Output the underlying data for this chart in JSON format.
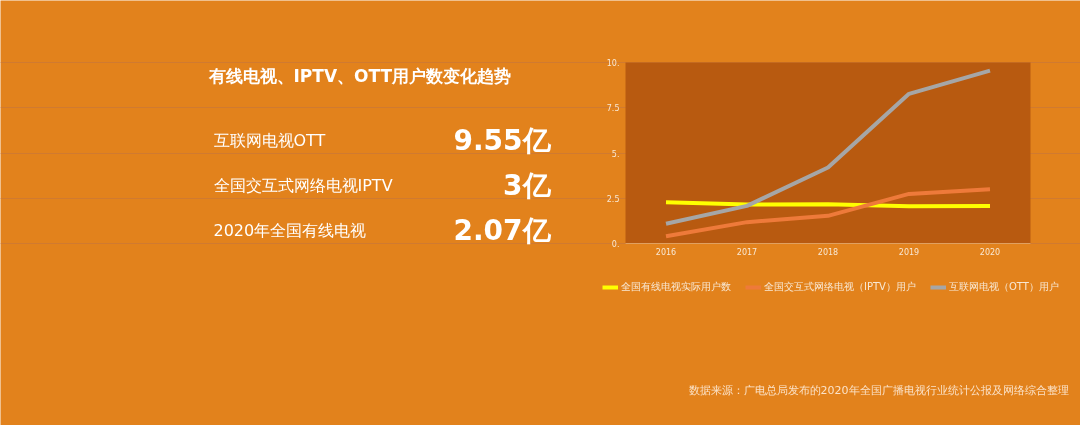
{
  "chart_data": {
    "type": "line",
    "title": "有线电视、IPTV、OTT用户数变化趋势",
    "categories": [
      "2016",
      "2017",
      "2018",
      "2019",
      "2020"
    ],
    "series": [
      {
        "name": "全国有线电视实际用户数",
        "color": "#ffff00",
        "values": [
          2.28,
          2.15,
          2.17,
          2.06,
          2.07
        ]
      },
      {
        "name": "全国交互式网络电视（IPTV）用户",
        "color": "#ee7a3a",
        "values": [
          0.4,
          1.18,
          1.53,
          2.74,
          3.0
        ]
      },
      {
        "name": "互联网电视（OTT）用户",
        "color": "#a6a6a6",
        "values": [
          1.09,
          2.08,
          4.2,
          8.27,
          9.55
        ]
      }
    ],
    "ylim": [
      0,
      10
    ],
    "yticks": [
      {
        "value": 0,
        "label": "0."
      },
      2.5,
      {
        "value": 5,
        "label": "5."
      },
      7.5,
      {
        "value": 10,
        "label": "10."
      }
    ],
    "grid": "y",
    "legend": "bottom",
    "annotations": [
      "互联网电视OTT",
      "9.55亿",
      "全国交互式网络电视IPTV",
      "3亿",
      "2020年全国有线电视",
      "2.07亿",
      "数据来源：广电总局发布的2020年全国广播电视行业统计公报及网络综合整理"
    ]
  }
}
